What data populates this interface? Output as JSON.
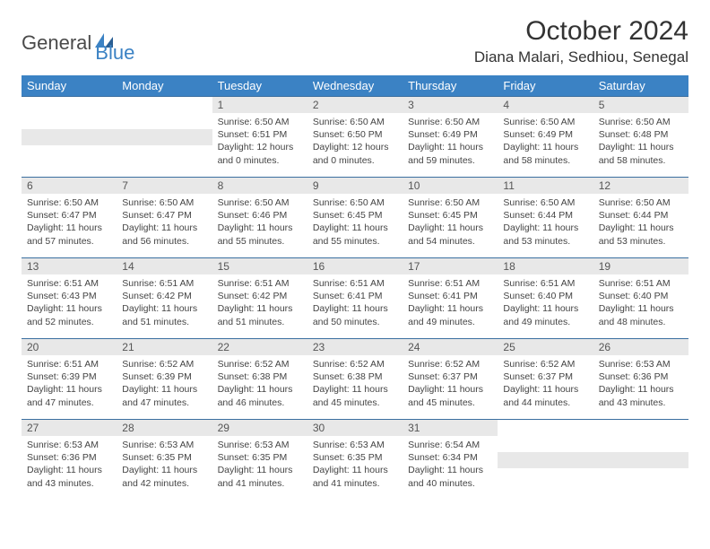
{
  "brand": {
    "part1": "General",
    "part2": "Blue"
  },
  "title": "October 2024",
  "location": "Diana Malari, Sedhiou, Senegal",
  "colors": {
    "header_bg": "#3b82c4",
    "header_text": "#ffffff",
    "daynum_bg": "#e8e8e8",
    "cell_border": "#3b6fa0",
    "body_text": "#444444"
  },
  "weekdays": [
    "Sunday",
    "Monday",
    "Tuesday",
    "Wednesday",
    "Thursday",
    "Friday",
    "Saturday"
  ],
  "weeks": [
    [
      null,
      null,
      {
        "n": "1",
        "sr": "6:50 AM",
        "ss": "6:51 PM",
        "dl": "12 hours and 0 minutes."
      },
      {
        "n": "2",
        "sr": "6:50 AM",
        "ss": "6:50 PM",
        "dl": "12 hours and 0 minutes."
      },
      {
        "n": "3",
        "sr": "6:50 AM",
        "ss": "6:49 PM",
        "dl": "11 hours and 59 minutes."
      },
      {
        "n": "4",
        "sr": "6:50 AM",
        "ss": "6:49 PM",
        "dl": "11 hours and 58 minutes."
      },
      {
        "n": "5",
        "sr": "6:50 AM",
        "ss": "6:48 PM",
        "dl": "11 hours and 58 minutes."
      }
    ],
    [
      {
        "n": "6",
        "sr": "6:50 AM",
        "ss": "6:47 PM",
        "dl": "11 hours and 57 minutes."
      },
      {
        "n": "7",
        "sr": "6:50 AM",
        "ss": "6:47 PM",
        "dl": "11 hours and 56 minutes."
      },
      {
        "n": "8",
        "sr": "6:50 AM",
        "ss": "6:46 PM",
        "dl": "11 hours and 55 minutes."
      },
      {
        "n": "9",
        "sr": "6:50 AM",
        "ss": "6:45 PM",
        "dl": "11 hours and 55 minutes."
      },
      {
        "n": "10",
        "sr": "6:50 AM",
        "ss": "6:45 PM",
        "dl": "11 hours and 54 minutes."
      },
      {
        "n": "11",
        "sr": "6:50 AM",
        "ss": "6:44 PM",
        "dl": "11 hours and 53 minutes."
      },
      {
        "n": "12",
        "sr": "6:50 AM",
        "ss": "6:44 PM",
        "dl": "11 hours and 53 minutes."
      }
    ],
    [
      {
        "n": "13",
        "sr": "6:51 AM",
        "ss": "6:43 PM",
        "dl": "11 hours and 52 minutes."
      },
      {
        "n": "14",
        "sr": "6:51 AM",
        "ss": "6:42 PM",
        "dl": "11 hours and 51 minutes."
      },
      {
        "n": "15",
        "sr": "6:51 AM",
        "ss": "6:42 PM",
        "dl": "11 hours and 51 minutes."
      },
      {
        "n": "16",
        "sr": "6:51 AM",
        "ss": "6:41 PM",
        "dl": "11 hours and 50 minutes."
      },
      {
        "n": "17",
        "sr": "6:51 AM",
        "ss": "6:41 PM",
        "dl": "11 hours and 49 minutes."
      },
      {
        "n": "18",
        "sr": "6:51 AM",
        "ss": "6:40 PM",
        "dl": "11 hours and 49 minutes."
      },
      {
        "n": "19",
        "sr": "6:51 AM",
        "ss": "6:40 PM",
        "dl": "11 hours and 48 minutes."
      }
    ],
    [
      {
        "n": "20",
        "sr": "6:51 AM",
        "ss": "6:39 PM",
        "dl": "11 hours and 47 minutes."
      },
      {
        "n": "21",
        "sr": "6:52 AM",
        "ss": "6:39 PM",
        "dl": "11 hours and 47 minutes."
      },
      {
        "n": "22",
        "sr": "6:52 AM",
        "ss": "6:38 PM",
        "dl": "11 hours and 46 minutes."
      },
      {
        "n": "23",
        "sr": "6:52 AM",
        "ss": "6:38 PM",
        "dl": "11 hours and 45 minutes."
      },
      {
        "n": "24",
        "sr": "6:52 AM",
        "ss": "6:37 PM",
        "dl": "11 hours and 45 minutes."
      },
      {
        "n": "25",
        "sr": "6:52 AM",
        "ss": "6:37 PM",
        "dl": "11 hours and 44 minutes."
      },
      {
        "n": "26",
        "sr": "6:53 AM",
        "ss": "6:36 PM",
        "dl": "11 hours and 43 minutes."
      }
    ],
    [
      {
        "n": "27",
        "sr": "6:53 AM",
        "ss": "6:36 PM",
        "dl": "11 hours and 43 minutes."
      },
      {
        "n": "28",
        "sr": "6:53 AM",
        "ss": "6:35 PM",
        "dl": "11 hours and 42 minutes."
      },
      {
        "n": "29",
        "sr": "6:53 AM",
        "ss": "6:35 PM",
        "dl": "11 hours and 41 minutes."
      },
      {
        "n": "30",
        "sr": "6:53 AM",
        "ss": "6:35 PM",
        "dl": "11 hours and 41 minutes."
      },
      {
        "n": "31",
        "sr": "6:54 AM",
        "ss": "6:34 PM",
        "dl": "11 hours and 40 minutes."
      },
      null,
      null
    ]
  ],
  "labels": {
    "sunrise": "Sunrise: ",
    "sunset": "Sunset: ",
    "daylight": "Daylight: "
  }
}
